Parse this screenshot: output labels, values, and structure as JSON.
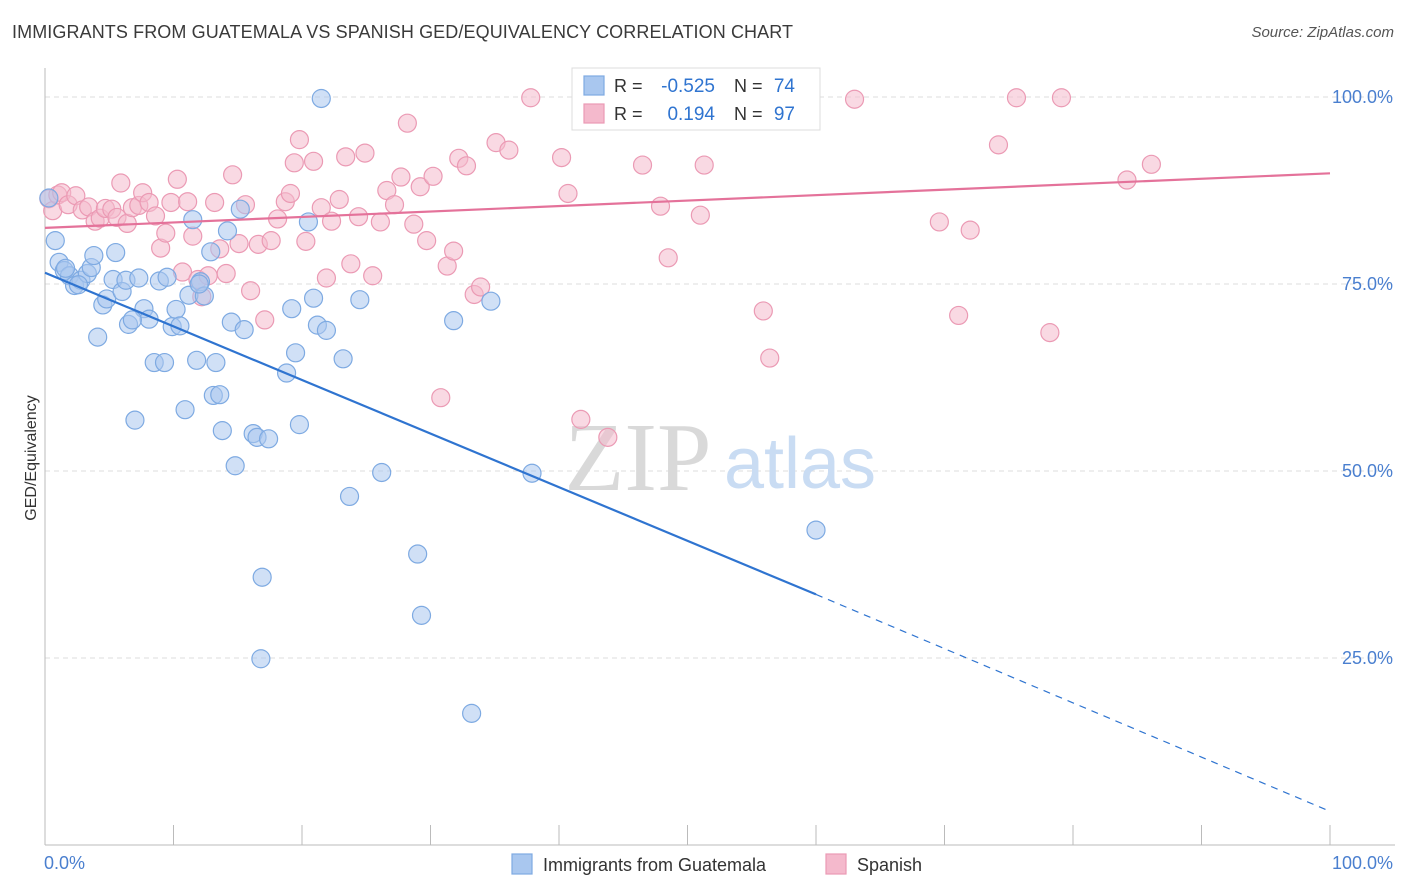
{
  "title": "IMMIGRANTS FROM GUATEMALA VS SPANISH GED/EQUIVALENCY CORRELATION CHART",
  "source": "Source: ZipAtlas.com",
  "watermark": {
    "zip": "ZIP",
    "atlas": "atlas"
  },
  "legend_box": {
    "rows": [
      {
        "r_label": "R =",
        "r_value": "-0.525",
        "n_label": "N =",
        "n_value": "74"
      },
      {
        "r_label": "R =",
        "r_value": "0.194",
        "n_label": "N =",
        "n_value": "97"
      }
    ]
  },
  "colors": {
    "blue_fill": "#a9c7ef",
    "blue_stroke": "#7eaae2",
    "blue_line": "#2f74d0",
    "pink_fill": "#f4b9cc",
    "pink_stroke": "#eb9ab4",
    "pink_line": "#e4729a",
    "axis_text": "#4a7fcf",
    "grid": "#dedede"
  },
  "chart_data": {
    "type": "scatter",
    "title": "IMMIGRANTS FROM GUATEMALA VS SPANISH GED/EQUIVALENCY CORRELATION CHART",
    "xlabel": "",
    "ylabel": "GED/Equivalency",
    "x_tick_labels": [
      "0.0%",
      "100.0%"
    ],
    "y_tick_labels": [
      "100.0%",
      "75.0%",
      "50.0%",
      "25.0%"
    ],
    "y_ticks": [
      100,
      75,
      50,
      25
    ],
    "xlim": [
      0,
      100
    ],
    "ylim": [
      0,
      100
    ],
    "grid": true,
    "legend_position": "bottom",
    "series": [
      {
        "name": "Immigrants from Guatemala",
        "color": "#a9c7ef",
        "trend": {
          "x": [
            0,
            60
          ],
          "y": [
            76.5,
            33.5
          ],
          "dashed_to": [
            100,
            4.5
          ]
        },
        "points": [
          [
            0.3,
            86.5
          ],
          [
            0.8,
            80.8
          ],
          [
            1.1,
            77.9
          ],
          [
            1.5,
            76.8
          ],
          [
            1.9,
            76.1
          ],
          [
            2.3,
            74.8
          ],
          [
            2.8,
            75.5
          ],
          [
            3.3,
            76.4
          ],
          [
            3.6,
            77.2
          ],
          [
            3.8,
            78.8
          ],
          [
            4.1,
            67.9
          ],
          [
            4.5,
            72.2
          ],
          [
            4.8,
            73.0
          ],
          [
            5.3,
            75.6
          ],
          [
            5.5,
            79.2
          ],
          [
            6.0,
            74.0
          ],
          [
            6.3,
            75.5
          ],
          [
            6.5,
            69.6
          ],
          [
            7.0,
            56.8
          ],
          [
            7.3,
            75.8
          ],
          [
            7.7,
            71.7
          ],
          [
            8.1,
            70.3
          ],
          [
            8.5,
            64.5
          ],
          [
            8.9,
            75.4
          ],
          [
            9.3,
            64.5
          ],
          [
            9.5,
            75.9
          ],
          [
            9.9,
            69.3
          ],
          [
            10.2,
            71.6
          ],
          [
            10.5,
            69.4
          ],
          [
            10.9,
            58.2
          ],
          [
            11.2,
            73.5
          ],
          [
            11.5,
            83.6
          ],
          [
            11.8,
            64.8
          ],
          [
            12.1,
            75.3
          ],
          [
            12.4,
            73.4
          ],
          [
            12.9,
            79.3
          ],
          [
            13.1,
            60.1
          ],
          [
            13.3,
            64.5
          ],
          [
            13.6,
            60.2
          ],
          [
            13.8,
            55.4
          ],
          [
            14.2,
            82.1
          ],
          [
            14.5,
            69.9
          ],
          [
            14.8,
            50.7
          ],
          [
            15.2,
            85.0
          ],
          [
            15.5,
            68.9
          ],
          [
            16.2,
            55.0
          ],
          [
            16.5,
            54.5
          ],
          [
            16.9,
            35.8
          ],
          [
            17.4,
            54.3
          ],
          [
            18.8,
            63.1
          ],
          [
            19.2,
            71.7
          ],
          [
            19.5,
            65.8
          ],
          [
            19.8,
            56.2
          ],
          [
            20.5,
            83.3
          ],
          [
            20.9,
            73.1
          ],
          [
            21.2,
            69.5
          ],
          [
            21.5,
            99.8
          ],
          [
            21.9,
            68.8
          ],
          [
            23.2,
            65.0
          ],
          [
            23.7,
            46.6
          ],
          [
            24.5,
            72.9
          ],
          [
            26.2,
            49.8
          ],
          [
            29.0,
            38.9
          ],
          [
            29.3,
            30.7
          ],
          [
            31.8,
            70.1
          ],
          [
            33.2,
            17.6
          ],
          [
            34.7,
            72.7
          ],
          [
            37.9,
            49.7
          ],
          [
            60.0,
            42.1
          ],
          [
            1.6,
            77.1
          ],
          [
            2.6,
            74.9
          ],
          [
            6.8,
            70.2
          ],
          [
            16.8,
            24.9
          ],
          [
            12.0,
            75.0
          ]
        ]
      },
      {
        "name": "Spanish",
        "color": "#f4b9cc",
        "trend": {
          "x": [
            0,
            100
          ],
          "y": [
            82.5,
            89.8
          ]
        },
        "points": [
          [
            0.3,
            86.4
          ],
          [
            0.6,
            84.8
          ],
          [
            1.0,
            86.9
          ],
          [
            1.3,
            87.2
          ],
          [
            1.8,
            85.6
          ],
          [
            2.4,
            86.8
          ],
          [
            2.9,
            84.9
          ],
          [
            3.4,
            85.3
          ],
          [
            3.9,
            83.4
          ],
          [
            4.3,
            83.8
          ],
          [
            4.7,
            85.1
          ],
          [
            5.2,
            85.0
          ],
          [
            5.6,
            83.9
          ],
          [
            5.9,
            88.5
          ],
          [
            6.4,
            83.1
          ],
          [
            6.8,
            85.2
          ],
          [
            7.3,
            85.5
          ],
          [
            7.6,
            87.2
          ],
          [
            8.1,
            85.9
          ],
          [
            8.6,
            84.1
          ],
          [
            9.0,
            79.8
          ],
          [
            9.4,
            81.8
          ],
          [
            9.8,
            85.9
          ],
          [
            10.3,
            89.0
          ],
          [
            10.7,
            76.6
          ],
          [
            11.1,
            86.0
          ],
          [
            11.5,
            81.4
          ],
          [
            11.9,
            75.6
          ],
          [
            12.2,
            73.3
          ],
          [
            12.7,
            76.1
          ],
          [
            13.2,
            85.9
          ],
          [
            13.6,
            79.7
          ],
          [
            14.1,
            76.4
          ],
          [
            14.6,
            89.6
          ],
          [
            15.1,
            80.4
          ],
          [
            15.6,
            85.6
          ],
          [
            16.0,
            74.1
          ],
          [
            16.6,
            80.3
          ],
          [
            17.1,
            70.2
          ],
          [
            17.6,
            80.8
          ],
          [
            18.1,
            83.7
          ],
          [
            18.7,
            86.0
          ],
          [
            19.1,
            87.1
          ],
          [
            19.4,
            91.2
          ],
          [
            19.8,
            94.3
          ],
          [
            20.3,
            80.7
          ],
          [
            20.9,
            91.4
          ],
          [
            21.5,
            85.2
          ],
          [
            21.9,
            75.8
          ],
          [
            22.3,
            83.4
          ],
          [
            22.9,
            86.3
          ],
          [
            23.4,
            92.0
          ],
          [
            23.8,
            77.7
          ],
          [
            24.4,
            84.0
          ],
          [
            24.9,
            92.5
          ],
          [
            25.5,
            76.1
          ],
          [
            26.1,
            83.3
          ],
          [
            26.6,
            87.5
          ],
          [
            27.2,
            85.6
          ],
          [
            27.7,
            89.3
          ],
          [
            28.2,
            96.5
          ],
          [
            28.7,
            83.0
          ],
          [
            29.2,
            88.0
          ],
          [
            29.7,
            80.8
          ],
          [
            30.2,
            89.4
          ],
          [
            30.8,
            59.8
          ],
          [
            31.3,
            77.4
          ],
          [
            31.8,
            79.4
          ],
          [
            32.2,
            91.8
          ],
          [
            32.8,
            90.8
          ],
          [
            33.4,
            73.6
          ],
          [
            33.9,
            74.6
          ],
          [
            35.1,
            93.9
          ],
          [
            36.1,
            92.9
          ],
          [
            37.8,
            99.9
          ],
          [
            40.2,
            91.9
          ],
          [
            40.7,
            87.1
          ],
          [
            41.7,
            56.9
          ],
          [
            43.8,
            54.5
          ],
          [
            46.5,
            90.9
          ],
          [
            47.9,
            85.4
          ],
          [
            48.5,
            78.5
          ],
          [
            51.0,
            84.2
          ],
          [
            51.3,
            90.9
          ],
          [
            55.6,
            99.7
          ],
          [
            55.9,
            71.4
          ],
          [
            56.4,
            65.1
          ],
          [
            63.0,
            99.7
          ],
          [
            69.6,
            83.3
          ],
          [
            71.1,
            70.8
          ],
          [
            72.0,
            82.2
          ],
          [
            74.2,
            93.6
          ],
          [
            75.6,
            99.9
          ],
          [
            78.2,
            68.5
          ],
          [
            79.1,
            99.9
          ],
          [
            84.2,
            88.9
          ],
          [
            86.1,
            91.0
          ]
        ]
      }
    ]
  }
}
